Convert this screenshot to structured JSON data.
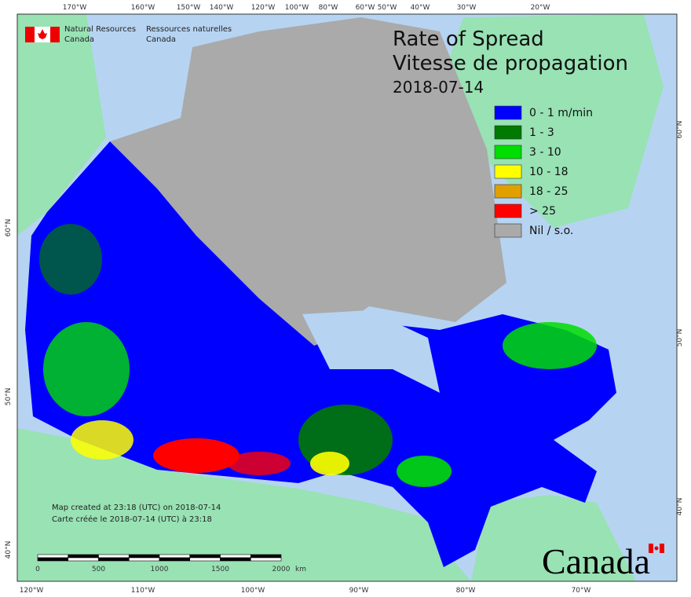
{
  "header": {
    "agency_en_1": "Natural Resources",
    "agency_en_2": "Canada",
    "agency_fr_1": "Ressources naturelles",
    "agency_fr_2": "Canada"
  },
  "title": {
    "line1": "Rate of Spread",
    "line2": "Vitesse de propagation",
    "date": "2018-07-14"
  },
  "legend": {
    "items": [
      {
        "label": "0 - 1 m/min",
        "color": "#0000ff"
      },
      {
        "label": "1 - 3",
        "color": "#007a00"
      },
      {
        "label": "3 - 10",
        "color": "#00dd00"
      },
      {
        "label": "10 - 18",
        "color": "#ffff00"
      },
      {
        "label": "18 - 25",
        "color": "#e0a000"
      },
      {
        "label": "> 25",
        "color": "#ff0000"
      },
      {
        "label": "Nil / s.o.",
        "color": "#aaaaaa"
      }
    ]
  },
  "notes": {
    "en": "Map created at 23:18 (UTC) on 2018-07-14",
    "fr": "Carte créée le 2018-07-14 (UTC) à 23:18"
  },
  "scale": {
    "labels": [
      "0",
      "500",
      "1000",
      "1500",
      "2000"
    ],
    "unit": "km"
  },
  "wordmark": "Canada",
  "graticule": {
    "top": [
      "170°W",
      "160°W",
      "150°W",
      "140°W",
      "120°W",
      "100°W",
      "80°W",
      "60°W",
      "50°W",
      "40°W",
      "30°W",
      "20°W"
    ],
    "bottom": [
      "120°W",
      "110°W",
      "100°W",
      "90°W",
      "80°W",
      "70°W"
    ],
    "left": [
      "60°N",
      "50°N",
      "40°N"
    ],
    "right": [
      "60°N",
      "50°N",
      "40°N"
    ]
  }
}
